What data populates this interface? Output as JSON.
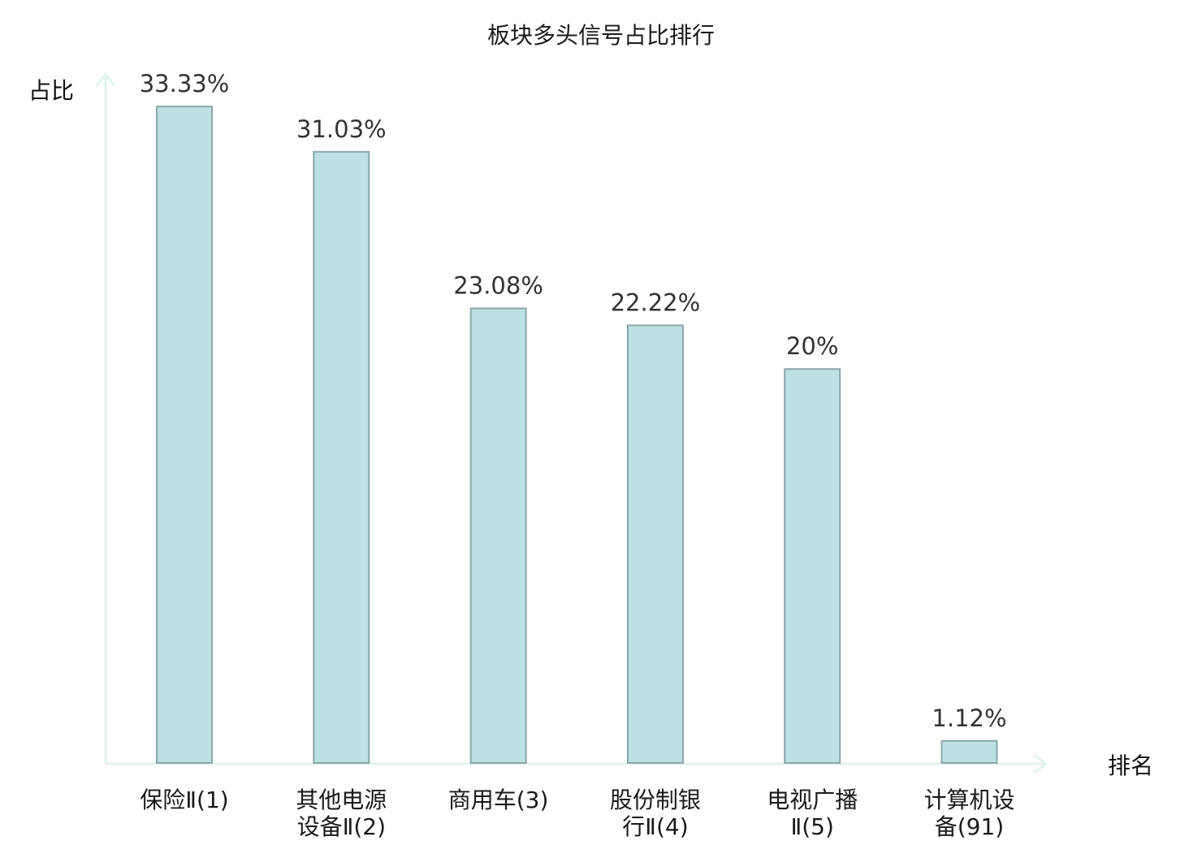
{
  "chart_data": {
    "type": "bar",
    "title": "板块多头信号占比排行",
    "ylabel": "占比",
    "xlabel": "排名",
    "ylim": [
      0,
      35
    ],
    "grid": false,
    "legend": "none",
    "categories": [
      [
        "保险Ⅱ(1)"
      ],
      [
        "其他电源",
        "设备Ⅱ(2)"
      ],
      [
        "商用车(3)"
      ],
      [
        "股份制银",
        "行Ⅱ(4)"
      ],
      [
        "电视广播",
        "Ⅱ(5)"
      ],
      [
        "计算机设",
        "备(91)"
      ]
    ],
    "values": [
      33.33,
      31.03,
      23.08,
      22.22,
      20,
      1.12
    ],
    "value_labels": [
      "33.33%",
      "31.03%",
      "23.08%",
      "22.22%",
      "20%",
      "1.12%"
    ],
    "highlight_index": 5,
    "colors": {
      "bar_fill": "#bde0e3",
      "bar_stroke": "#8aa7a9",
      "axis": "#e0f2ef",
      "highlight_text": "#e01010",
      "label_text": "#1a1a1a",
      "value_text": "#333333"
    }
  }
}
